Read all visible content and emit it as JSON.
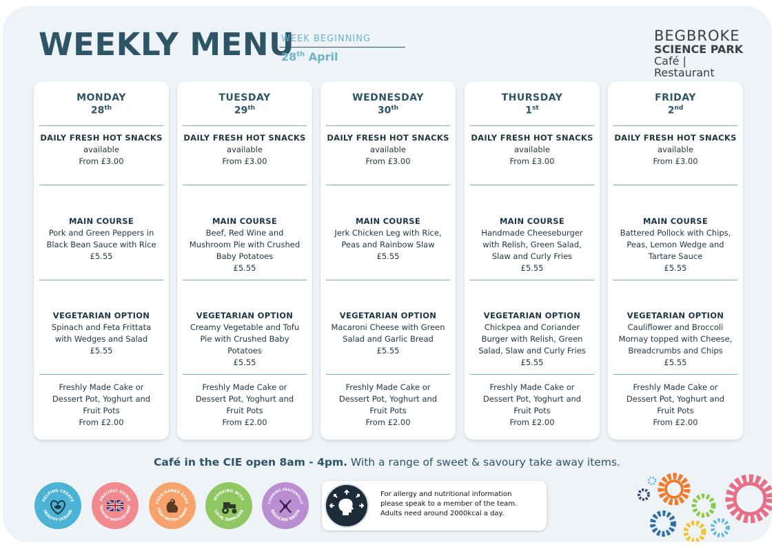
{
  "header": {
    "title": "WEEKLY MENU",
    "week_label": "WEEK BEGINNING",
    "week_day": "28",
    "week_suffix": "th",
    "week_month": "April"
  },
  "brand": {
    "line1": "BEGBROKE",
    "line2": "SCIENCE PARK",
    "line3": "Café | Restaurant"
  },
  "days": [
    {
      "name": "MONDAY",
      "date": "28",
      "suffix": "th",
      "snacks": {
        "heading": "DAILY FRESH HOT SNACKS",
        "line1": "available",
        "price": "From £3.00"
      },
      "main": {
        "heading": "MAIN COURSE",
        "lines": [
          "Pork and Green Peppers in",
          "Black Bean Sauce with Rice"
        ],
        "price": "£5.55"
      },
      "veg": {
        "heading": "VEGETARIAN OPTION",
        "lines": [
          "Spinach and Feta Frittata",
          "with Wedges and Salad"
        ],
        "price": "£5.55"
      },
      "dessert": {
        "lines": [
          "Freshly Made Cake or",
          "Dessert Pot, Yoghurt and",
          "Fruit Pots"
        ],
        "price": "From £2.00"
      }
    },
    {
      "name": "TUESDAY",
      "date": "29",
      "suffix": "th",
      "snacks": {
        "heading": "DAILY FRESH HOT SNACKS",
        "line1": "available",
        "price": "From £3.00"
      },
      "main": {
        "heading": "MAIN COURSE",
        "lines": [
          "Beef, Red Wine and",
          "Mushroom Pie with Crushed",
          "Baby Potatoes"
        ],
        "price": "£5.55"
      },
      "veg": {
        "heading": "VEGETARIAN OPTION",
        "lines": [
          "Creamy Vegetable and Tofu",
          "Pie with Crushed Baby",
          "Potatoes"
        ],
        "price": "£5.55"
      },
      "dessert": {
        "lines": [
          "Freshly Made Cake or",
          "Dessert Pot, Yoghurt and",
          "Fruit Pots"
        ],
        "price": "From £2.00"
      }
    },
    {
      "name": "WEDNESDAY",
      "date": "30",
      "suffix": "th",
      "snacks": {
        "heading": "DAILY FRESH HOT SNACKS",
        "line1": "available",
        "price": "From £3.00"
      },
      "main": {
        "heading": "MAIN COURSE",
        "lines": [
          "Jerk Chicken Leg with Rice,",
          "Peas and Rainbow Slaw"
        ],
        "price": "£5.55"
      },
      "veg": {
        "heading": "VEGETARIAN OPTION",
        "lines": [
          "Macaroni Cheese with Green",
          "Salad and Garlic Bread"
        ],
        "price": "£5.55"
      },
      "dessert": {
        "lines": [
          "Freshly Made Cake or",
          "Dessert Pot, Yoghurt and",
          "Fruit Pots"
        ],
        "price": "From £2.00"
      }
    },
    {
      "name": "THURSDAY",
      "date": "1",
      "suffix": "st",
      "snacks": {
        "heading": "DAILY FRESH HOT SNACKS",
        "line1": "available",
        "price": "From £3.00"
      },
      "main": {
        "heading": "MAIN COURSE",
        "lines": [
          "Handmade Cheeseburger",
          "with Relish, Green Salad,",
          "Slaw and Curly Fries"
        ],
        "price": "£5.55"
      },
      "veg": {
        "heading": "VEGETARIAN OPTION",
        "lines": [
          "Chickpea and Coriander",
          "Burger with Relish, Green",
          "Salad, Slaw and Curly Fries"
        ],
        "price": "£5.55"
      },
      "dessert": {
        "lines": [
          "Freshly Made Cake or",
          "Dessert Pot, Yoghurt and",
          "Fruit Pots"
        ],
        "price": "From £2.00"
      }
    },
    {
      "name": "FRIDAY",
      "date": "2",
      "suffix": "nd",
      "snacks": {
        "heading": "DAILY FRESH HOT SNACKS",
        "line1": "available",
        "price": "From £3.00"
      },
      "main": {
        "heading": "MAIN COURSE",
        "lines": [
          "Battered Pollock with Chips,",
          "Peas, Lemon Wedge and",
          "Tartare Sauce"
        ],
        "price": "£5.55"
      },
      "veg": {
        "heading": "VEGETARIAN OPTION",
        "lines": [
          "Cauliflower and Broccoli",
          "Mornay topped with Cheese,",
          "Breadcrumbs and Chips"
        ],
        "price": "£5.55"
      },
      "dessert": {
        "lines": [
          "Freshly Made Cake or",
          "Dessert Pot, Yoghurt and",
          "Fruit Pots"
        ],
        "price": "From £2.00"
      }
    }
  ],
  "footer": {
    "cie_bold": "Café in the CIE open 8am - 4pm.",
    "cie_rest": " With a range of sweet & savoury take away items.",
    "badges": [
      {
        "icon": "heart-fish-icon",
        "color": "#4db3d6",
        "top": "HELPING CREATE",
        "bottom": "HEALTHY OCEANS"
      },
      {
        "icon": "union-flag-icon",
        "color": "#f08a8f",
        "top": "PROUDLY USING",
        "bottom": "TRUSTED SOURCED MEAT"
      },
      {
        "icon": "chicken-icon",
        "color": "#f5a36a",
        "top": "FREE-RANGE EGGS",
        "bottom": "FROM BRITISH FARMS"
      },
      {
        "icon": "tractor-icon",
        "color": "#8fc862",
        "top": "WORKING WITH",
        "bottom": "LOCAL SUPPLIERS"
      },
      {
        "icon": "cutlery-leaf-icon",
        "color": "#b98ed2",
        "top": "COOKING SEASONALLY",
        "bottom": "REDUCING WASTE"
      }
    ],
    "allergy": {
      "icon": "person-head-arrows-icon",
      "line1": "For allergy and nutritional information",
      "line2": "please speak to a member of the team.",
      "line3": "Adults need around 2000kcal a day."
    }
  },
  "colors": {
    "navy": "#2d5566",
    "accent": "#6fb2cc",
    "background": "#eef3f8"
  }
}
